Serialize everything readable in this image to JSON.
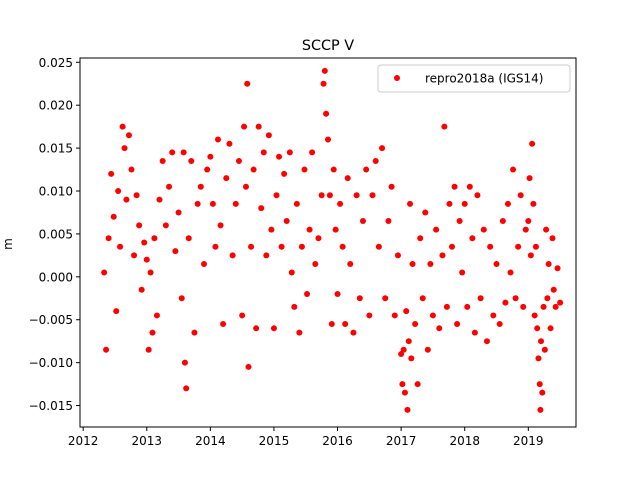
{
  "chart_data": {
    "type": "scatter",
    "title": "SCCP V",
    "xlabel": "",
    "ylabel": "m",
    "xlim": [
      2011.95,
      2019.75
    ],
    "ylim": [
      -0.0175,
      0.0255
    ],
    "x_ticks": [
      2012,
      2013,
      2014,
      2015,
      2016,
      2017,
      2018,
      2019
    ],
    "x_tick_labels": [
      "2012",
      "2013",
      "2014",
      "2015",
      "2016",
      "2017",
      "2018",
      "2019"
    ],
    "y_ticks": [
      -0.015,
      -0.01,
      -0.005,
      0.0,
      0.005,
      0.01,
      0.015,
      0.02,
      0.025
    ],
    "y_tick_labels": [
      "−0.015",
      "−0.010",
      "−0.005",
      "0.000",
      "0.005",
      "0.010",
      "0.015",
      "0.020",
      "0.025"
    ],
    "grid": false,
    "legend": {
      "position": "top-right",
      "entries": [
        "repro2018a (IGS14)"
      ]
    },
    "series": [
      {
        "name": "repro2018a (IGS14)",
        "color": "#ff0000",
        "marker": "circle",
        "points": [
          [
            2012.33,
            0.0005
          ],
          [
            2012.36,
            -0.0085
          ],
          [
            2012.4,
            0.0045
          ],
          [
            2012.44,
            0.012
          ],
          [
            2012.48,
            0.007
          ],
          [
            2012.52,
            -0.004
          ],
          [
            2012.55,
            0.01
          ],
          [
            2012.58,
            0.0035
          ],
          [
            2012.62,
            0.0175
          ],
          [
            2012.65,
            0.015
          ],
          [
            2012.68,
            0.009
          ],
          [
            2012.72,
            0.0165
          ],
          [
            2012.76,
            0.0125
          ],
          [
            2012.8,
            0.0025
          ],
          [
            2012.84,
            0.0095
          ],
          [
            2012.88,
            0.006
          ],
          [
            2012.92,
            -0.0015
          ],
          [
            2012.96,
            0.004
          ],
          [
            2013.0,
            0.002
          ],
          [
            2013.03,
            -0.0085
          ],
          [
            2013.06,
            0.0005
          ],
          [
            2013.09,
            -0.0065
          ],
          [
            2013.12,
            0.0045
          ],
          [
            2013.16,
            -0.0045
          ],
          [
            2013.2,
            0.009
          ],
          [
            2013.25,
            0.0135
          ],
          [
            2013.3,
            0.006
          ],
          [
            2013.35,
            0.0105
          ],
          [
            2013.4,
            0.0145
          ],
          [
            2013.45,
            0.003
          ],
          [
            2013.5,
            0.0075
          ],
          [
            2013.55,
            -0.0025
          ],
          [
            2013.58,
            0.0145
          ],
          [
            2013.6,
            -0.01
          ],
          [
            2013.62,
            -0.013
          ],
          [
            2013.66,
            0.0045
          ],
          [
            2013.7,
            0.0135
          ],
          [
            2013.75,
            -0.0065
          ],
          [
            2013.8,
            0.0085
          ],
          [
            2013.85,
            0.0105
          ],
          [
            2013.9,
            0.0015
          ],
          [
            2013.95,
            0.0125
          ],
          [
            2014.0,
            0.014
          ],
          [
            2014.04,
            0.0085
          ],
          [
            2014.08,
            0.0035
          ],
          [
            2014.12,
            0.016
          ],
          [
            2014.16,
            0.006
          ],
          [
            2014.2,
            -0.0055
          ],
          [
            2014.25,
            0.0115
          ],
          [
            2014.3,
            0.0155
          ],
          [
            2014.35,
            0.0025
          ],
          [
            2014.4,
            0.0085
          ],
          [
            2014.45,
            0.0135
          ],
          [
            2014.5,
            -0.0045
          ],
          [
            2014.53,
            0.0175
          ],
          [
            2014.56,
            0.0105
          ],
          [
            2014.58,
            0.0225
          ],
          [
            2014.6,
            -0.0105
          ],
          [
            2014.64,
            0.0035
          ],
          [
            2014.68,
            0.0125
          ],
          [
            2014.72,
            -0.006
          ],
          [
            2014.76,
            0.0175
          ],
          [
            2014.8,
            0.008
          ],
          [
            2014.84,
            0.0145
          ],
          [
            2014.88,
            0.0025
          ],
          [
            2014.92,
            0.0165
          ],
          [
            2014.96,
            0.0055
          ],
          [
            2015.0,
            -0.006
          ],
          [
            2015.04,
            0.0095
          ],
          [
            2015.08,
            0.014
          ],
          [
            2015.12,
            0.0035
          ],
          [
            2015.16,
            0.012
          ],
          [
            2015.2,
            0.0065
          ],
          [
            2015.25,
            0.0145
          ],
          [
            2015.28,
            0.0005
          ],
          [
            2015.32,
            -0.0035
          ],
          [
            2015.36,
            0.0085
          ],
          [
            2015.4,
            -0.0065
          ],
          [
            2015.44,
            0.0035
          ],
          [
            2015.48,
            0.0125
          ],
          [
            2015.52,
            -0.002
          ],
          [
            2015.56,
            0.0055
          ],
          [
            2015.6,
            0.0145
          ],
          [
            2015.65,
            0.0015
          ],
          [
            2015.7,
            0.0045
          ],
          [
            2015.75,
            0.0095
          ],
          [
            2015.78,
            0.0225
          ],
          [
            2015.8,
            0.024
          ],
          [
            2015.82,
            0.019
          ],
          [
            2015.85,
            0.016
          ],
          [
            2015.88,
            0.0095
          ],
          [
            2015.91,
            -0.0055
          ],
          [
            2015.94,
            0.0125
          ],
          [
            2015.97,
            0.0055
          ],
          [
            2016.0,
            -0.002
          ],
          [
            2016.04,
            0.0085
          ],
          [
            2016.08,
            0.0035
          ],
          [
            2016.12,
            -0.0055
          ],
          [
            2016.16,
            0.0115
          ],
          [
            2016.2,
            0.0015
          ],
          [
            2016.25,
            -0.0065
          ],
          [
            2016.3,
            0.0095
          ],
          [
            2016.35,
            -0.0025
          ],
          [
            2016.4,
            0.0065
          ],
          [
            2016.45,
            0.0125
          ],
          [
            2016.5,
            -0.0045
          ],
          [
            2016.55,
            0.0095
          ],
          [
            2016.6,
            0.0135
          ],
          [
            2016.65,
            0.0035
          ],
          [
            2016.7,
            0.015
          ],
          [
            2016.75,
            -0.0025
          ],
          [
            2016.8,
            0.0065
          ],
          [
            2016.85,
            0.0105
          ],
          [
            2016.9,
            -0.0045
          ],
          [
            2016.95,
            0.0025
          ],
          [
            2017.0,
            -0.009
          ],
          [
            2017.02,
            -0.0125
          ],
          [
            2017.04,
            -0.0085
          ],
          [
            2017.06,
            -0.0135
          ],
          [
            2017.08,
            -0.004
          ],
          [
            2017.1,
            -0.0155
          ],
          [
            2017.12,
            -0.0075
          ],
          [
            2017.14,
            0.0085
          ],
          [
            2017.16,
            -0.0095
          ],
          [
            2017.18,
            0.0015
          ],
          [
            2017.22,
            -0.0055
          ],
          [
            2017.26,
            -0.0125
          ],
          [
            2017.3,
            0.0045
          ],
          [
            2017.34,
            -0.0025
          ],
          [
            2017.38,
            0.0075
          ],
          [
            2017.42,
            -0.0085
          ],
          [
            2017.46,
            0.0015
          ],
          [
            2017.5,
            -0.0045
          ],
          [
            2017.55,
            0.0055
          ],
          [
            2017.6,
            -0.006
          ],
          [
            2017.65,
            0.0025
          ],
          [
            2017.68,
            0.0175
          ],
          [
            2017.72,
            -0.0035
          ],
          [
            2017.76,
            0.0085
          ],
          [
            2017.8,
            0.0035
          ],
          [
            2017.84,
            0.0105
          ],
          [
            2017.88,
            -0.0055
          ],
          [
            2017.92,
            0.0065
          ],
          [
            2017.96,
            0.0005
          ],
          [
            2018.0,
            0.0085
          ],
          [
            2018.04,
            -0.0035
          ],
          [
            2018.08,
            0.0105
          ],
          [
            2018.12,
            0.0045
          ],
          [
            2018.16,
            -0.0065
          ],
          [
            2018.2,
            0.0095
          ],
          [
            2018.25,
            -0.0025
          ],
          [
            2018.3,
            0.0055
          ],
          [
            2018.35,
            -0.0075
          ],
          [
            2018.4,
            0.0035
          ],
          [
            2018.45,
            -0.0045
          ],
          [
            2018.5,
            0.0015
          ],
          [
            2018.55,
            -0.0055
          ],
          [
            2018.6,
            0.0065
          ],
          [
            2018.64,
            -0.003
          ],
          [
            2018.68,
            0.0085
          ],
          [
            2018.72,
            0.0005
          ],
          [
            2018.76,
            0.0125
          ],
          [
            2018.8,
            -0.0025
          ],
          [
            2018.84,
            0.0035
          ],
          [
            2018.88,
            0.0095
          ],
          [
            2018.92,
            -0.0035
          ],
          [
            2018.96,
            0.0055
          ],
          [
            2019.0,
            0.0065
          ],
          [
            2019.02,
            0.0115
          ],
          [
            2019.04,
            0.0025
          ],
          [
            2019.06,
            0.0155
          ],
          [
            2019.08,
            0.0085
          ],
          [
            2019.1,
            -0.0045
          ],
          [
            2019.12,
            0.0035
          ],
          [
            2019.14,
            -0.006
          ],
          [
            2019.16,
            -0.0095
          ],
          [
            2019.18,
            -0.0125
          ],
          [
            2019.19,
            -0.0155
          ],
          [
            2019.2,
            -0.0075
          ],
          [
            2019.22,
            -0.0135
          ],
          [
            2019.24,
            -0.0035
          ],
          [
            2019.26,
            -0.0085
          ],
          [
            2019.28,
            0.0055
          ],
          [
            2019.3,
            -0.0025
          ],
          [
            2019.32,
            0.0015
          ],
          [
            2019.35,
            -0.006
          ],
          [
            2019.38,
            0.0045
          ],
          [
            2019.4,
            -0.0015
          ],
          [
            2019.43,
            -0.0035
          ],
          [
            2019.46,
            0.001
          ],
          [
            2019.5,
            -0.003
          ]
        ]
      }
    ]
  }
}
